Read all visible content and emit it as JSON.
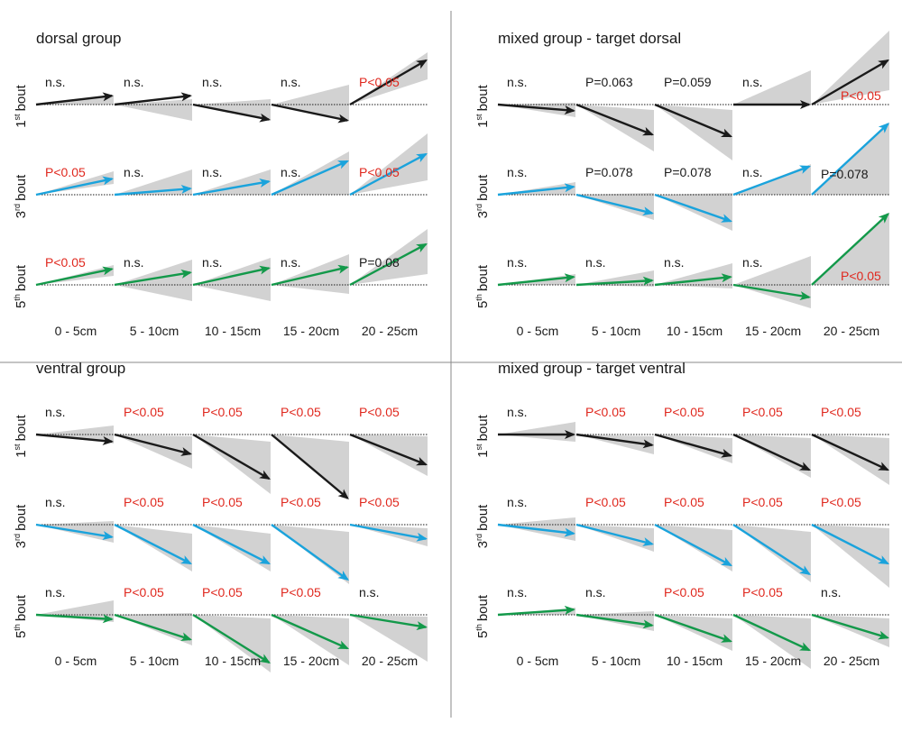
{
  "colors": {
    "bout1": "#1a1a1a",
    "bout3": "#1aa3dc",
    "bout5": "#13994a",
    "band": "#d2d2d2",
    "significant": "#e0281e",
    "not_significant": "#1a1a1a"
  },
  "bins": [
    "0 - 5cm",
    "5 - 10cm",
    "10 - 15cm",
    "15 - 20cm",
    "20 - 25cm"
  ],
  "rows": [
    {
      "num": "1",
      "sup": "st",
      "word": "bout",
      "color_key": "bout1"
    },
    {
      "num": "3",
      "sup": "rd",
      "word": "bout",
      "color_key": "bout3"
    },
    {
      "num": "5",
      "sup": "th",
      "word": "bout",
      "color_key": "bout5"
    }
  ],
  "panels": [
    {
      "title": "dorsal group",
      "cells": [
        [
          {
            "y": 10,
            "lo": 0,
            "hi": 10,
            "label": "n.s.",
            "sig": false
          },
          {
            "y": 10,
            "lo": -18,
            "hi": 6,
            "label": "n.s.",
            "sig": false
          },
          {
            "y": -17,
            "lo": -18,
            "hi": 6,
            "label": "n.s.",
            "sig": false
          },
          {
            "y": -18,
            "lo": -18,
            "hi": 22,
            "label": "n.s.",
            "sig": false
          },
          {
            "y": 50,
            "lo": 28,
            "hi": 58,
            "label": "P<0.05",
            "sig": true
          }
        ],
        [
          {
            "y": 18,
            "lo": 12,
            "hi": 26,
            "label": "P<0.05",
            "sig": true
          },
          {
            "y": 7,
            "lo": 0,
            "hi": 28,
            "label": "n.s.",
            "sig": false
          },
          {
            "y": 15,
            "lo": 0,
            "hi": 28,
            "label": "n.s.",
            "sig": false
          },
          {
            "y": 38,
            "lo": 0,
            "hi": 48,
            "label": "n.s.",
            "sig": false
          },
          {
            "y": 46,
            "lo": 16,
            "hi": 68,
            "label": "P<0.05",
            "sig": true
          }
        ],
        [
          {
            "y": 18,
            "lo": 10,
            "hi": 22,
            "label": "P<0.05",
            "sig": true
          },
          {
            "y": 14,
            "lo": -18,
            "hi": 28,
            "label": "n.s.",
            "sig": false
          },
          {
            "y": 19,
            "lo": -18,
            "hi": 30,
            "label": "n.s.",
            "sig": false
          },
          {
            "y": 20,
            "lo": -10,
            "hi": 34,
            "label": "n.s.",
            "sig": false
          },
          {
            "y": 46,
            "lo": 12,
            "hi": 62,
            "label": "P=0.08",
            "sig": false
          }
        ]
      ]
    },
    {
      "title": "mixed group - target dorsal",
      "cells": [
        [
          {
            "y": -7,
            "lo": -14,
            "hi": 2,
            "label": "n.s.",
            "sig": false
          },
          {
            "y": -34,
            "lo": -52,
            "hi": -6,
            "label": "P=0.063",
            "sig": false
          },
          {
            "y": -36,
            "lo": -62,
            "hi": -6,
            "label": "P=0.059",
            "sig": false
          },
          {
            "y": 0,
            "lo": 0,
            "hi": 38,
            "label": "n.s.",
            "sig": false
          },
          {
            "y": 50,
            "lo": 16,
            "hi": 82,
            "label": "P<0.05",
            "sig": true
          }
        ],
        [
          {
            "y": 9,
            "lo": 0,
            "hi": 14,
            "label": "n.s.",
            "sig": false
          },
          {
            "y": -21,
            "lo": -28,
            "hi": 2,
            "label": "P=0.078",
            "sig": false
          },
          {
            "y": -30,
            "lo": -40,
            "hi": 2,
            "label": "P=0.078",
            "sig": false
          },
          {
            "y": 32,
            "lo": 0,
            "hi": 34,
            "label": "n.s.",
            "sig": false
          },
          {
            "y": 80,
            "lo": 0,
            "hi": 80,
            "label": "P=0.078",
            "sig": false
          }
        ],
        [
          {
            "y": 9,
            "lo": 0,
            "hi": 12,
            "label": "n.s.",
            "sig": false
          },
          {
            "y": 5,
            "lo": -2,
            "hi": 16,
            "label": "n.s.",
            "sig": false
          },
          {
            "y": 9,
            "lo": -4,
            "hi": 24,
            "label": "n.s.",
            "sig": false
          },
          {
            "y": -14,
            "lo": -26,
            "hi": 32,
            "label": "n.s.",
            "sig": false
          },
          {
            "y": 80,
            "lo": 0,
            "hi": 80,
            "label": "P<0.05",
            "sig": true
          }
        ]
      ]
    },
    {
      "title": "ventral group",
      "cells": [
        [
          {
            "y": -8,
            "lo": -10,
            "hi": 10,
            "label": "n.s.",
            "sig": false
          },
          {
            "y": -22,
            "lo": -38,
            "hi": -2,
            "label": "P<0.05",
            "sig": true
          },
          {
            "y": -50,
            "lo": -66,
            "hi": -8,
            "label": "P<0.05",
            "sig": true
          },
          {
            "y": -72,
            "lo": -70,
            "hi": -8,
            "label": "P<0.05",
            "sig": true
          },
          {
            "y": -34,
            "lo": -46,
            "hi": -2,
            "label": "P<0.05",
            "sig": true
          }
        ],
        [
          {
            "y": -14,
            "lo": -20,
            "hi": 4,
            "label": "n.s.",
            "sig": false
          },
          {
            "y": -44,
            "lo": -52,
            "hi": -10,
            "label": "P<0.05",
            "sig": true
          },
          {
            "y": -44,
            "lo": -52,
            "hi": -10,
            "label": "P<0.05",
            "sig": true
          },
          {
            "y": -62,
            "lo": -66,
            "hi": -8,
            "label": "P<0.05",
            "sig": true
          },
          {
            "y": -16,
            "lo": -24,
            "hi": -4,
            "label": "P<0.05",
            "sig": true
          }
        ],
        [
          {
            "y": -5,
            "lo": -8,
            "hi": 16,
            "label": "n.s.",
            "sig": false
          },
          {
            "y": -28,
            "lo": -34,
            "hi": 2,
            "label": "P<0.05",
            "sig": true
          },
          {
            "y": -54,
            "lo": -64,
            "hi": -4,
            "label": "P<0.05",
            "sig": true
          },
          {
            "y": -38,
            "lo": -56,
            "hi": -4,
            "label": "P<0.05",
            "sig": true
          },
          {
            "y": -14,
            "lo": -52,
            "hi": -2,
            "label": "n.s.",
            "sig": false
          }
        ]
      ]
    },
    {
      "title": "mixed group - target ventral",
      "cells": [
        [
          {
            "y": 0,
            "lo": -8,
            "hi": 14,
            "label": "n.s.",
            "sig": false
          },
          {
            "y": -12,
            "lo": -22,
            "hi": -2,
            "label": "P<0.05",
            "sig": true
          },
          {
            "y": -24,
            "lo": -32,
            "hi": -4,
            "label": "P<0.05",
            "sig": true
          },
          {
            "y": -40,
            "lo": -48,
            "hi": -4,
            "label": "P<0.05",
            "sig": true
          },
          {
            "y": -40,
            "lo": -56,
            "hi": -4,
            "label": "P<0.05",
            "sig": true
          }
        ],
        [
          {
            "y": -10,
            "lo": -18,
            "hi": 8,
            "label": "n.s.",
            "sig": false
          },
          {
            "y": -22,
            "lo": -30,
            "hi": -4,
            "label": "P<0.05",
            "sig": true
          },
          {
            "y": -46,
            "lo": -52,
            "hi": -6,
            "label": "P<0.05",
            "sig": true
          },
          {
            "y": -56,
            "lo": -64,
            "hi": -8,
            "label": "P<0.05",
            "sig": true
          },
          {
            "y": -44,
            "lo": -70,
            "hi": -4,
            "label": "P<0.05",
            "sig": true
          }
        ],
        [
          {
            "y": 6,
            "lo": 0,
            "hi": 8,
            "label": "n.s.",
            "sig": false
          },
          {
            "y": -12,
            "lo": -18,
            "hi": 4,
            "label": "n.s.",
            "sig": false
          },
          {
            "y": -30,
            "lo": -40,
            "hi": -4,
            "label": "P<0.05",
            "sig": true
          },
          {
            "y": -40,
            "lo": -60,
            "hi": -4,
            "label": "P<0.05",
            "sig": true
          },
          {
            "y": -26,
            "lo": -36,
            "hi": -4,
            "label": "n.s.",
            "sig": false
          }
        ]
      ]
    }
  ]
}
